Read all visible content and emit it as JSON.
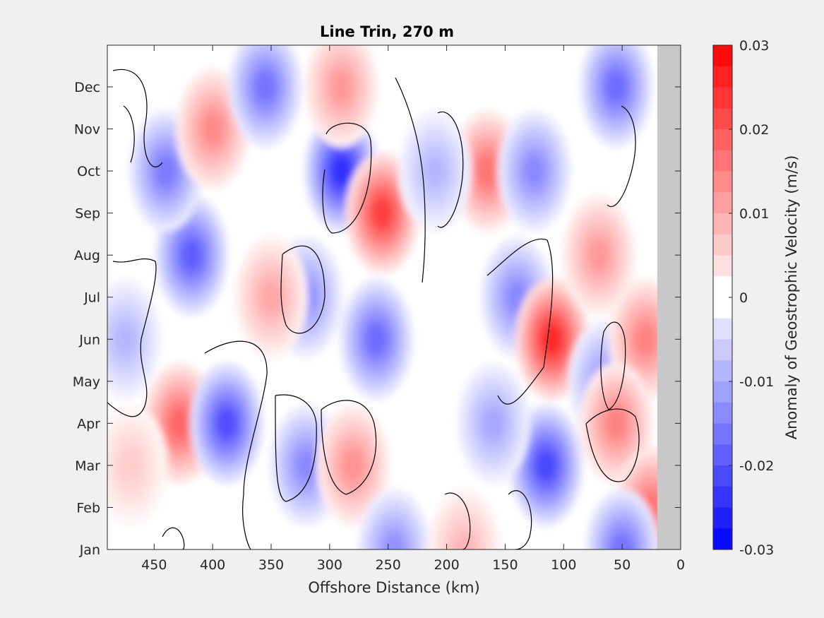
{
  "chart_data": {
    "type": "heatmap",
    "title": "Line Trin, 270 m",
    "xlabel": "Offshore Distance (km)",
    "ylabel": "",
    "x_axis_reversed": true,
    "xlim": [
      0,
      490
    ],
    "x_ticks": [
      450,
      400,
      350,
      300,
      250,
      200,
      150,
      100,
      50,
      0
    ],
    "y_ticks": [
      "Jan",
      "Feb",
      "Mar",
      "Apr",
      "May",
      "Jun",
      "Jul",
      "Aug",
      "Sep",
      "Oct",
      "Nov",
      "Dec"
    ],
    "colorbar": {
      "label": "Anomaly of Geostrophic Velocity (m/s)",
      "range": [
        -0.03,
        0.03
      ],
      "levels": 24,
      "ticks": [
        "0.03",
        "0.02",
        "0.01",
        "0",
        "-0.01",
        "-0.02",
        "-0.03"
      ],
      "colormap": "blue-white-red"
    },
    "contour_levels": [
      0
    ],
    "no_data_region_km": [
      0,
      20
    ],
    "anomalies": [
      {
        "x": 428,
        "y": "Apr",
        "value": 0.021
      },
      {
        "x": 418,
        "y": "Aug",
        "value": -0.022
      },
      {
        "x": 440,
        "y": "Oct",
        "value": -0.018
      },
      {
        "x": 400,
        "y": "Nov",
        "value": 0.016
      },
      {
        "x": 388,
        "y": "Apr",
        "value": -0.024
      },
      {
        "x": 355,
        "y": "Dec",
        "value": -0.019
      },
      {
        "x": 290,
        "y": "Oct",
        "value": -0.028
      },
      {
        "x": 290,
        "y": "Dec",
        "value": 0.014
      },
      {
        "x": 255,
        "y": "Sep",
        "value": 0.026
      },
      {
        "x": 260,
        "y": "Jun",
        "value": -0.02
      },
      {
        "x": 320,
        "y": "Mar",
        "value": -0.016
      },
      {
        "x": 280,
        "y": "Mar",
        "value": 0.015
      },
      {
        "x": 320,
        "y": "Jul",
        "value": -0.015
      },
      {
        "x": 350,
        "y": "Jul",
        "value": 0.012
      },
      {
        "x": 245,
        "y": "Jan",
        "value": -0.015
      },
      {
        "x": 165,
        "y": "Oct",
        "value": 0.019
      },
      {
        "x": 125,
        "y": "Oct",
        "value": -0.016
      },
      {
        "x": 140,
        "y": "Jul",
        "value": -0.016
      },
      {
        "x": 110,
        "y": "Jun",
        "value": 0.029
      },
      {
        "x": 115,
        "y": "Mar",
        "value": -0.025
      },
      {
        "x": 70,
        "y": "Aug",
        "value": 0.014
      },
      {
        "x": 65,
        "y": "May",
        "value": -0.014
      },
      {
        "x": 55,
        "y": "Dec",
        "value": -0.02
      },
      {
        "x": 30,
        "y": "Jun",
        "value": 0.017
      },
      {
        "x": 55,
        "y": "Apr",
        "value": 0.017
      },
      {
        "x": 25,
        "y": "Feb",
        "value": 0.019
      },
      {
        "x": 50,
        "y": "Jan",
        "value": -0.019
      },
      {
        "x": 185,
        "y": "Jan",
        "value": 0.01
      },
      {
        "x": 160,
        "y": "Apr",
        "value": -0.012
      },
      {
        "x": 210,
        "y": "Oct",
        "value": -0.01
      },
      {
        "x": 475,
        "y": "Jun",
        "value": -0.01
      },
      {
        "x": 470,
        "y": "Mar",
        "value": 0.007
      }
    ]
  }
}
